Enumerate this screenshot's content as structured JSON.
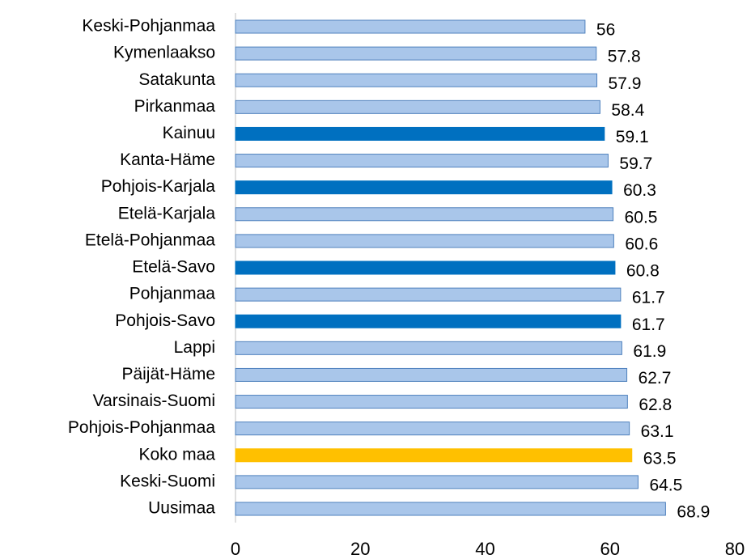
{
  "chart_data": {
    "type": "bar",
    "orientation": "horizontal",
    "categories": [
      "Keski-Pohjanmaa",
      "Kymenlaakso",
      "Satakunta",
      "Pirkanmaa",
      "Kainuu",
      "Kanta-Häme",
      "Pohjois-Karjala",
      "Etelä-Karjala",
      "Etelä-Pohjanmaa",
      "Etelä-Savo",
      "Pohjanmaa",
      "Pohjois-Savo",
      "Lappi",
      "Päijät-Häme",
      "Varsinais-Suomi",
      "Pohjois-Pohjanmaa",
      "Koko maa",
      "Keski-Suomi",
      "Uusimaa"
    ],
    "values": [
      56,
      57.8,
      57.9,
      58.4,
      59.1,
      59.7,
      60.3,
      60.5,
      60.6,
      60.8,
      61.7,
      61.7,
      61.9,
      62.7,
      62.8,
      63.1,
      63.5,
      64.5,
      68.9
    ],
    "colors": [
      "#a9c6ea",
      "#a9c6ea",
      "#a9c6ea",
      "#a9c6ea",
      "#0070c0",
      "#a9c6ea",
      "#0070c0",
      "#a9c6ea",
      "#a9c6ea",
      "#0070c0",
      "#a9c6ea",
      "#0070c0",
      "#a9c6ea",
      "#a9c6ea",
      "#a9c6ea",
      "#a9c6ea",
      "#ffc000",
      "#a9c6ea",
      "#a9c6ea"
    ],
    "xlim": [
      0,
      80
    ],
    "xticks": [
      0,
      20,
      40,
      60,
      80
    ],
    "grid": false
  }
}
